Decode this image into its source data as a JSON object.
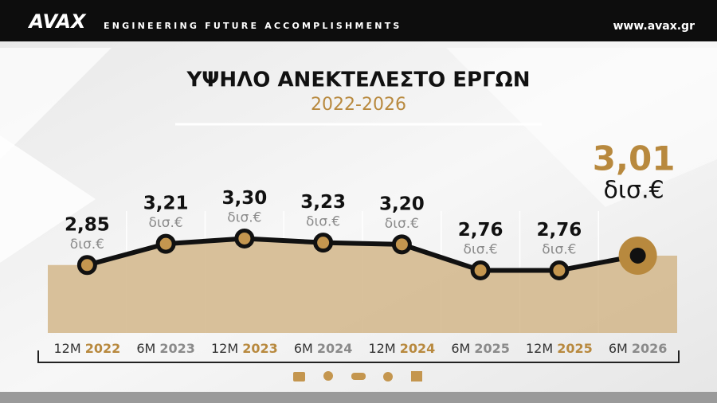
{
  "header": {
    "logo": "AVAX",
    "tagline": "ENGINEERING FUTURE ACCOMPLISHMENTS",
    "website": "www.avax.gr"
  },
  "chart_data": {
    "type": "line",
    "title": "ΥΨΗΛΟ ΑΝΕΚΤΕΛΕΣΤΟ ΕΡΓΩΝ",
    "subtitle": "2022-2026",
    "categories": [
      {
        "period": "12M",
        "year": "2022",
        "year_color": "#b8893e"
      },
      {
        "period": "6M",
        "year": "2023",
        "year_color": "#8a8a8a"
      },
      {
        "period": "12M",
        "year": "2023",
        "year_color": "#b8893e"
      },
      {
        "period": "6M",
        "year": "2024",
        "year_color": "#8a8a8a"
      },
      {
        "period": "12M",
        "year": "2024",
        "year_color": "#b8893e"
      },
      {
        "period": "6M",
        "year": "2025",
        "year_color": "#8a8a8a"
      },
      {
        "period": "12M",
        "year": "2025",
        "year_color": "#b8893e"
      },
      {
        "period": "6M",
        "year": "2026",
        "year_color": "#8a8a8a"
      }
    ],
    "values": [
      2.85,
      3.21,
      3.3,
      3.23,
      3.2,
      2.76,
      2.76,
      3.01
    ],
    "value_labels": [
      "2,85",
      "3,21",
      "3,30",
      "3,23",
      "3,20",
      "2,76",
      "2,76",
      "3,01"
    ],
    "unit": "δισ.€",
    "ylim": [
      1.7,
      3.9
    ],
    "color": "#111111",
    "marker_color": "#c4964f",
    "area_color": "#d2b68a",
    "highlight_color": "#b8893e"
  }
}
